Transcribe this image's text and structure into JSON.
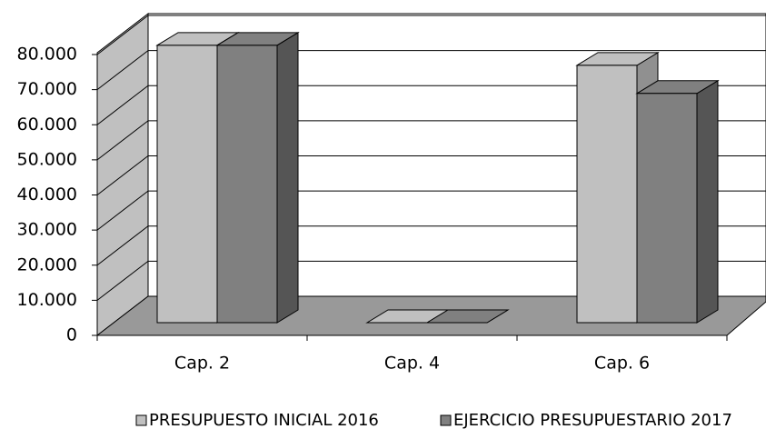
{
  "chart_data": {
    "type": "bar3d",
    "categories": [
      "Cap. 2",
      "Cap. 4",
      "Cap. 6"
    ],
    "series": [
      {
        "name": "PRESUPUESTO INICIAL 2016",
        "color": "#c0c0c0",
        "values": [
          79000,
          0,
          73300
        ]
      },
      {
        "name": "EJERCICIO PRESUPUESTARIO 2017",
        "color": "#808080",
        "values": [
          79000,
          0,
          65300
        ]
      }
    ],
    "ylim": [
      0,
      80000
    ],
    "yticks": [
      0,
      {
        "value": 10000,
        "label": "10.000"
      },
      {
        "value": 20000,
        "label": "20.000"
      },
      {
        "value": 30000,
        "label": "30.000"
      },
      {
        "value": 40000,
        "label": "40.000"
      },
      {
        "value": 50000,
        "label": "50.000"
      },
      {
        "value": 60000,
        "label": "60.000"
      },
      {
        "value": 70000,
        "label": "70.000"
      },
      {
        "value": 80000,
        "label": "80.000"
      }
    ],
    "grid": true,
    "legend": "bottom"
  }
}
